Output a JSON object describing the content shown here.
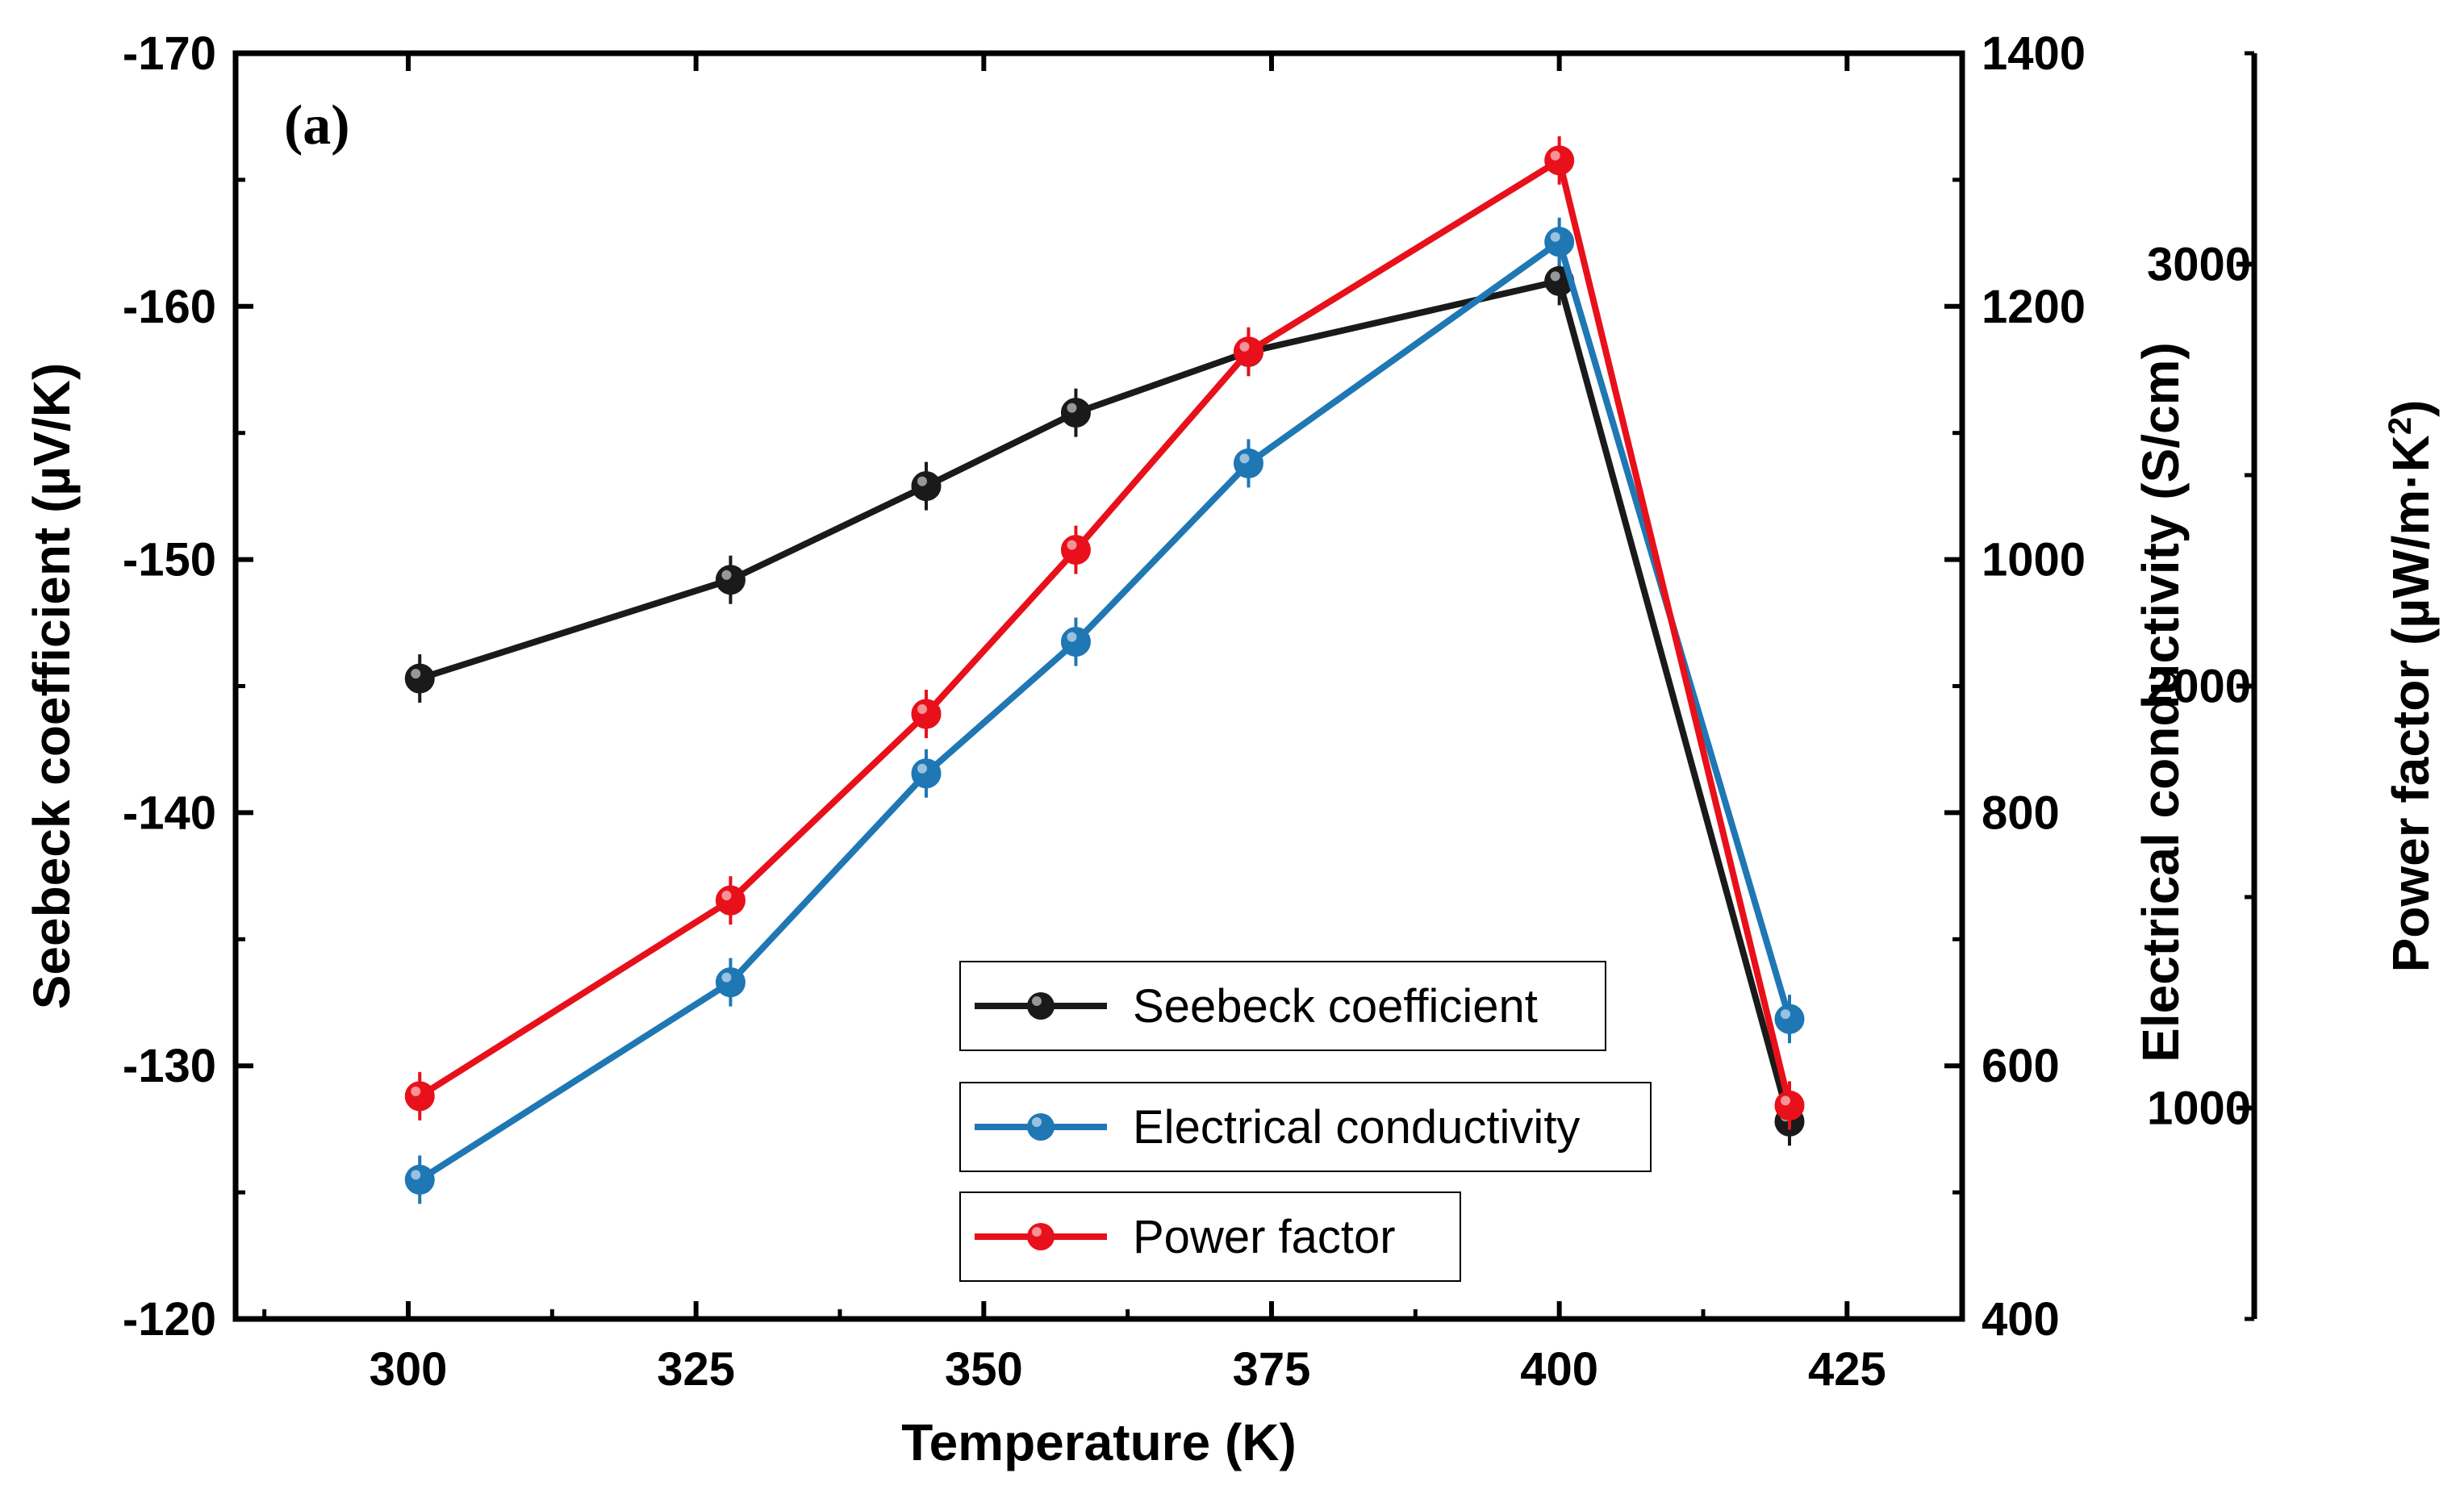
{
  "chart_data": {
    "type": "line",
    "panel_label": "(a)",
    "x_axis": {
      "label": "Temperature (K)",
      "range": [
        285,
        435
      ],
      "ticks": [
        300,
        325,
        350,
        375,
        400,
        425
      ],
      "tick_labels": [
        "300",
        "325",
        "350",
        "375",
        "400",
        "425"
      ]
    },
    "y_axes": [
      {
        "id": "seebeck",
        "label": "Seebeck coefficient (µV/K)",
        "range": [
          -120,
          -170
        ],
        "ticks": [
          -120,
          -130,
          -140,
          -150,
          -160,
          -170
        ],
        "tick_labels": [
          "-120",
          "-130",
          "-140",
          "-150",
          "-160",
          "-170"
        ]
      },
      {
        "id": "conductivity",
        "label": "Electrical conductivity (S/cm)",
        "range": [
          400,
          1400
        ],
        "ticks": [
          400,
          600,
          800,
          1000,
          1200,
          1400
        ],
        "tick_labels": [
          "400",
          "600",
          "800",
          "1000",
          "1200",
          "1400"
        ]
      },
      {
        "id": "powerfactor",
        "label_main": "Power factor (µW/m·K",
        "label_sup": "2",
        "label_end": ")",
        "range": [
          500,
          3500
        ],
        "ticks": [
          1000,
          2000,
          3000
        ],
        "tick_labels": [
          "1000",
          "2000",
          "3000"
        ]
      }
    ],
    "series": [
      {
        "name": "Seebeck coefficient",
        "axis": "seebeck",
        "color": "#1a1a1a",
        "x": [
          301,
          328,
          345,
          358,
          373,
          400,
          420
        ],
        "y": [
          -145.3,
          -149.2,
          -152.9,
          -155.8,
          -158.2,
          -161.0,
          -127.8
        ]
      },
      {
        "name": "Electrical conductivity",
        "axis": "conductivity",
        "color": "#1f77b4",
        "x": [
          301,
          328,
          345,
          358,
          373,
          400,
          420
        ],
        "y": [
          510,
          666,
          831,
          935,
          1076,
          1251,
          637
        ]
      },
      {
        "name": "Power factor",
        "axis": "powerfactor",
        "color": "#e8101a",
        "x": [
          301,
          328,
          345,
          358,
          373,
          400,
          420
        ],
        "y": [
          1028,
          1492,
          1934,
          2323,
          2793,
          3246,
          1006
        ]
      }
    ],
    "legend": {
      "items": [
        "Seebeck coefficient",
        "Electrical conductivity",
        "Power factor"
      ]
    },
    "grid": false
  }
}
